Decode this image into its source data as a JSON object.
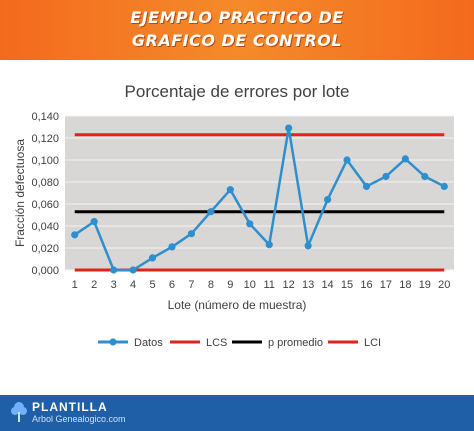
{
  "banner": {
    "line1": "EJEMPLO PRACTICO DE",
    "line2": "GRAFICO DE CONTROL"
  },
  "footer": {
    "brand": "PLANTILLA",
    "subtitle": "Arbol Genealogico.com",
    "icon": "tree-icon"
  },
  "colors": {
    "banner": "#f36a1d",
    "plot_bg": "#d9d6d6",
    "datos": "#2e8fce",
    "lcs": "#e2231a",
    "p_promedio": "#000000",
    "lci": "#e2231a",
    "footer": "#1f5fa8"
  },
  "chart_data": {
    "type": "line",
    "title": "Porcentaje de errores por lote",
    "xlabel": "Lote (número de muestra)",
    "ylabel": "Fracción defectuosa",
    "ylim": [
      0,
      0.14
    ],
    "yticks": [
      "0,000",
      "0,020",
      "0,040",
      "0,060",
      "0,080",
      "0,100",
      "0,120",
      "0,140"
    ],
    "x": [
      1,
      2,
      3,
      4,
      5,
      6,
      7,
      8,
      9,
      10,
      11,
      12,
      13,
      14,
      15,
      16,
      17,
      18,
      19,
      20
    ],
    "grid": true,
    "legend": "bottom",
    "series": [
      {
        "name": "Datos",
        "values": [
          0.032,
          0.044,
          0.0,
          0.0,
          0.011,
          0.021,
          0.033,
          0.053,
          0.073,
          0.042,
          0.023,
          0.129,
          0.022,
          0.064,
          0.1,
          0.076,
          0.085,
          0.101,
          0.085,
          0.076
        ]
      },
      {
        "name": "LCS",
        "value": 0.123
      },
      {
        "name": "p promedio",
        "value": 0.053
      },
      {
        "name": "LCI",
        "value": 0.0
      }
    ]
  }
}
